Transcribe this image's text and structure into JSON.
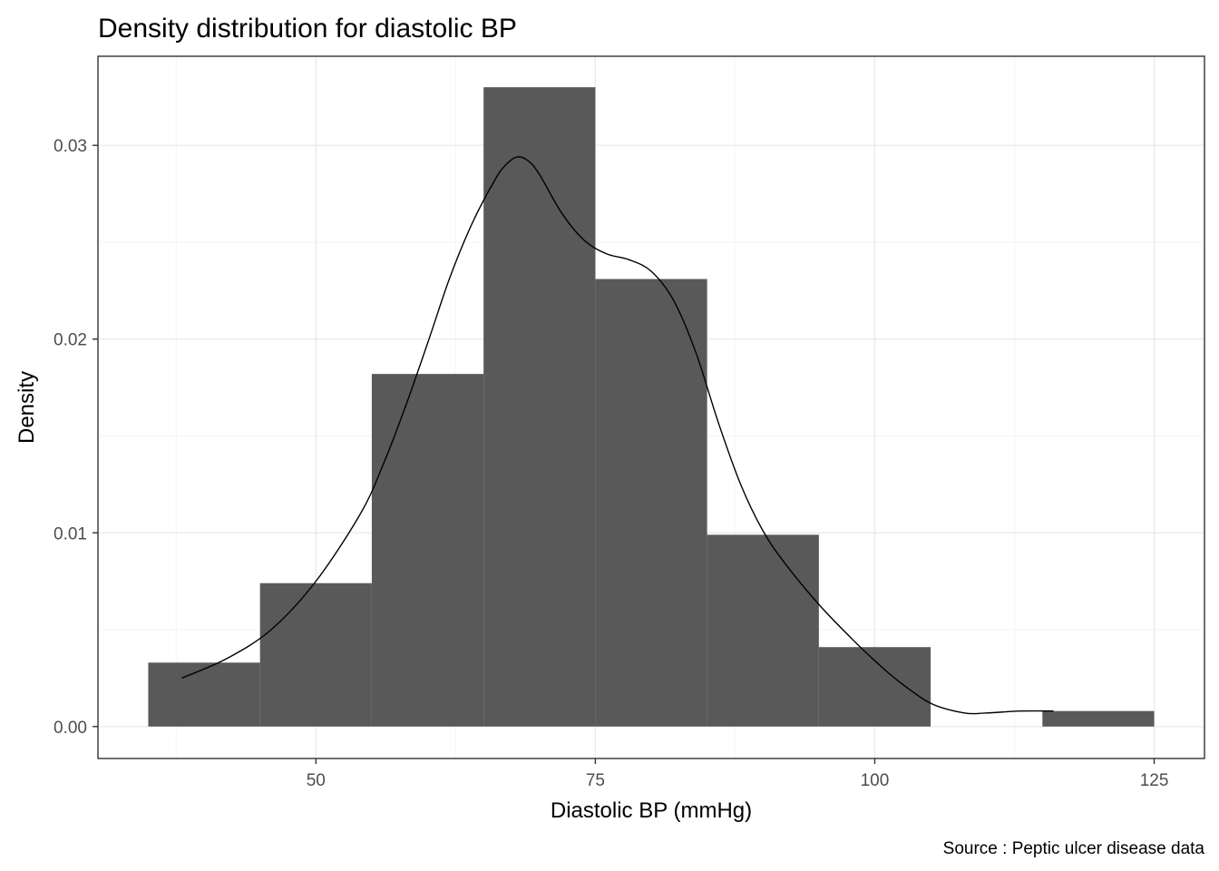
{
  "chart_data": {
    "type": "histogram",
    "title": "Density distribution for diastolic BP",
    "xlabel": "Diastolic BP (mmHg)",
    "ylabel": "Density",
    "caption": "Source : Peptic ulcer disease data",
    "xlim": [
      30.5,
      129.5
    ],
    "ylim": [
      -0.00165,
      0.0346
    ],
    "x_ticks": [
      50,
      75,
      100,
      125
    ],
    "x_tick_labels": [
      "50",
      "75",
      "100",
      "125"
    ],
    "y_ticks": [
      0.0,
      0.01,
      0.02,
      0.03
    ],
    "y_tick_labels": [
      "0.00",
      "0.01",
      "0.02",
      "0.03"
    ],
    "grid": true,
    "bars": [
      {
        "x0": 35,
        "x1": 45,
        "density": 0.0033
      },
      {
        "x0": 45,
        "x1": 55,
        "density": 0.0074
      },
      {
        "x0": 55,
        "x1": 65,
        "density": 0.0182
      },
      {
        "x0": 65,
        "x1": 75,
        "density": 0.033
      },
      {
        "x0": 75,
        "x1": 85,
        "density": 0.0231
      },
      {
        "x0": 85,
        "x1": 95,
        "density": 0.0099
      },
      {
        "x0": 95,
        "x1": 105,
        "density": 0.0041
      },
      {
        "x0": 105,
        "x1": 115,
        "density": 0.0
      },
      {
        "x0": 115,
        "x1": 125,
        "density": 0.0008
      }
    ],
    "density_curve": {
      "x": [
        38,
        42,
        46,
        50,
        54,
        56,
        58,
        60,
        62,
        64,
        66,
        67,
        68,
        69,
        70,
        72,
        74,
        76,
        78,
        80,
        82,
        84,
        86,
        88,
        90,
        92,
        95,
        98,
        100,
        102,
        105,
        108,
        110,
        113,
        116
      ],
      "y": [
        0.0025,
        0.0035,
        0.005,
        0.0075,
        0.011,
        0.0135,
        0.0165,
        0.0198,
        0.0232,
        0.026,
        0.0282,
        0.029,
        0.0294,
        0.0292,
        0.0285,
        0.0265,
        0.0251,
        0.0244,
        0.0241,
        0.0235,
        0.022,
        0.0193,
        0.0157,
        0.0125,
        0.0101,
        0.0084,
        0.0063,
        0.0045,
        0.0034,
        0.0024,
        0.0012,
        0.0007,
        0.0007,
        0.0008,
        0.0008
      ]
    },
    "colors": {
      "bar_fill": "#595959",
      "curve": "#000000",
      "grid_major": "#ebebeb",
      "grid_minor": "#f5f5f5",
      "panel_border": "#333333",
      "tick_text": "#4d4d4d",
      "background": "#ffffff"
    }
  }
}
